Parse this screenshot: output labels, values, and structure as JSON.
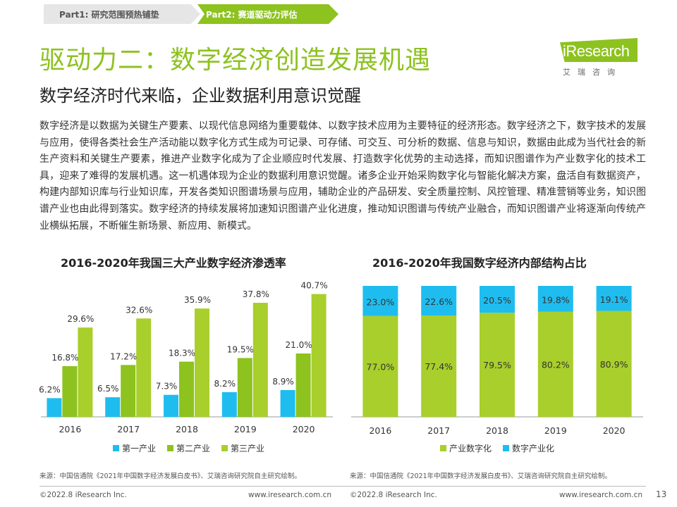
{
  "tabs": {
    "part1": "Part1: 研究范围预热铺垫",
    "part2": "Part2: 赛道驱动力评估"
  },
  "logo": {
    "name": "iResearch",
    "sub": "艾瑞咨询"
  },
  "title": "驱动力二：数字经济创造发展机遇",
  "subtitle": "数字经济时代来临，企业数据利用意识觉醒",
  "body": "数字经济是以数据为关键生产要素、以现代信息网络为重要载体、以数字技术应用为主要特征的经济形态。数字经济之下，数字技术的发展与应用，使得各类社会生产活动能以数字化方式生成为可记录、可存储、可交互、可分析的数据、信息与知识，数据由此成为当代社会的新生产资料和关键生产要素，推进产业数字化成为了企业顺应时代发展、打造数字化优势的主动选择，而知识图谱作为产业数字化的技术工具，迎来了难得的发展机遇。这一机遇体现为企业的数据利用意识觉醒。诸多企业开始采购数字化与智能化解决方案，盘活自有数据资产，构建内部知识库与行业知识库，开发各类知识图谱场景与应用，辅助企业的产品研发、安全质量控制、风控管理、精准营销等业务，知识图谱产业也由此得到落实。数字经济的持续发展将加速知识图谱产业化进度，推动知识图谱与传统产业融合，而知识图谱产业将逐渐向传统产业横纵拓展，不断催生新场景、新应用、新模式。",
  "colors": {
    "blue": "#1fbdef",
    "green": "#8dc21f",
    "lime": "#a8cf2b"
  },
  "chart_data": [
    {
      "type": "bar",
      "title": "2016-2020年我国三大产业数字经济渗透率",
      "categories": [
        "2016",
        "2017",
        "2018",
        "2019",
        "2020"
      ],
      "series": [
        {
          "name": "第一产业",
          "color": "#1fbdef",
          "values": [
            6.2,
            6.5,
            7.3,
            8.2,
            8.9
          ],
          "labels": [
            "6.2%",
            "6.5%",
            "7.3%",
            "8.2%",
            "8.9%"
          ]
        },
        {
          "name": "第二产业",
          "color": "#8dc21f",
          "values": [
            16.8,
            17.2,
            18.3,
            19.5,
            21.0
          ],
          "labels": [
            "16.8%",
            "17.2%",
            "18.3%",
            "19.5%",
            "21.0%"
          ]
        },
        {
          "name": "第三产业",
          "color": "#a8cf2b",
          "values": [
            29.6,
            32.6,
            35.9,
            37.8,
            40.7
          ],
          "labels": [
            "29.6%",
            "32.6%",
            "35.9%",
            "37.8%",
            "40.7%"
          ]
        }
      ],
      "ylim": [
        0,
        42
      ],
      "grid": false,
      "legend": "bottom"
    },
    {
      "type": "bar",
      "stacked": true,
      "title": "2016-2020年我国数字经济内部结构占比",
      "categories": [
        "2016",
        "2017",
        "2018",
        "2019",
        "2020"
      ],
      "series": [
        {
          "name": "产业数字化",
          "color": "#a8cf2b",
          "values": [
            77.0,
            77.4,
            79.5,
            80.2,
            80.9
          ],
          "labels": [
            "77.0%",
            "77.4%",
            "79.5%",
            "80.2%",
            "80.9%"
          ]
        },
        {
          "name": "数字产业化",
          "color": "#1fbdef",
          "values": [
            23.0,
            22.6,
            20.5,
            19.8,
            19.1
          ],
          "labels": [
            "23.0%",
            "22.6%",
            "20.5%",
            "19.8%",
            "19.1%"
          ]
        }
      ],
      "ylim": [
        0,
        100
      ],
      "grid": false,
      "legend": "bottom"
    }
  ],
  "sources": {
    "left": "来源：中国信通院《2021年中国数字经济发展白皮书》、艾瑞咨询研究院自主研究绘制。",
    "right": "来源：中国信通院《2021年中国数字经济发展白皮书》、艾瑞咨询研究院自主研究绘制。"
  },
  "footer": {
    "copyright_left": "©2022.8 iResearch Inc.",
    "url_left": "www.iresearch.com.cn",
    "copyright_right": "©2022.8 iResearch Inc.",
    "url_right": "www.iresearch.com.cn",
    "page": "13"
  }
}
